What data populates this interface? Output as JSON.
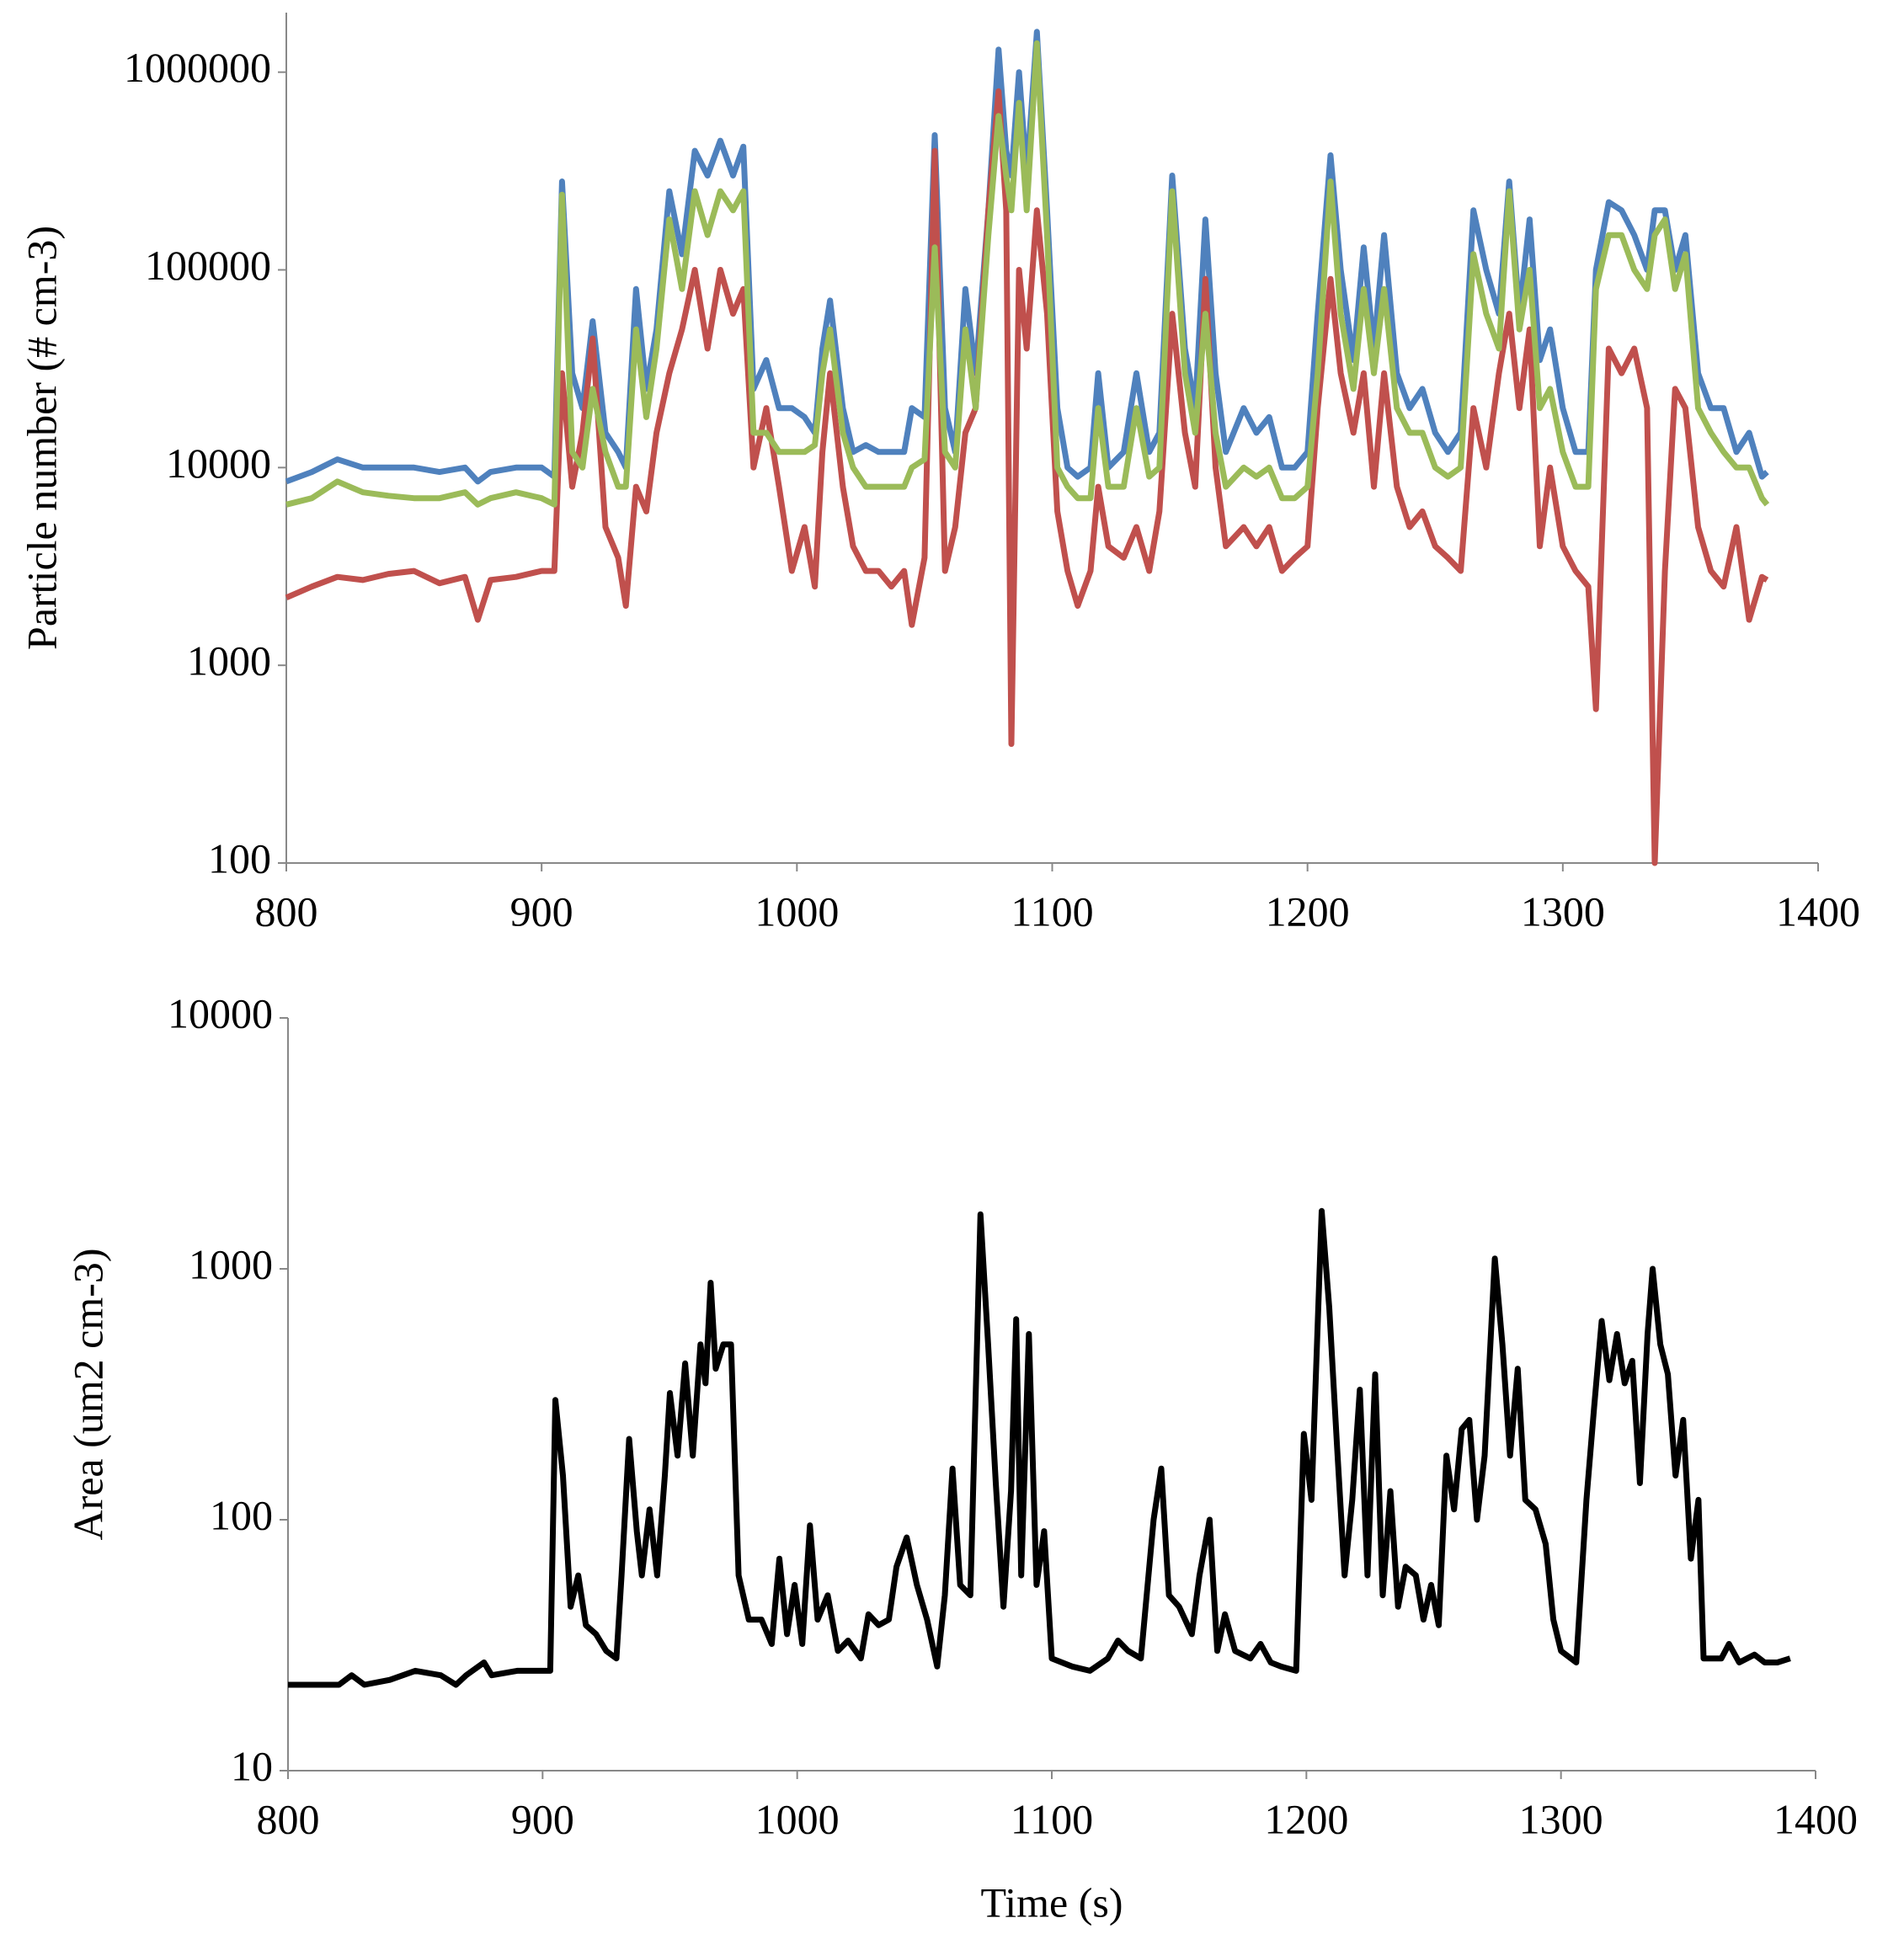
{
  "chart_data": [
    {
      "type": "line",
      "ylabel": "Particle number (# cm-3)",
      "log_y": true,
      "xlim": [
        800,
        1400
      ],
      "xticks": [
        800,
        900,
        1000,
        1100,
        1200,
        1300,
        1400
      ],
      "ylim": [
        100,
        2000000
      ],
      "yticks": [
        100,
        1000,
        10000,
        100000,
        1000000
      ],
      "x": [
        800,
        810,
        820,
        830,
        840,
        850,
        860,
        870,
        875,
        880,
        890,
        900,
        905,
        908,
        912,
        916,
        920,
        925,
        930,
        933,
        937,
        941,
        945,
        950,
        955,
        960,
        965,
        970,
        975,
        979,
        983,
        988,
        993,
        998,
        1003,
        1007,
        1010,
        1013,
        1018,
        1022,
        1027,
        1032,
        1037,
        1042,
        1045,
        1050,
        1054,
        1058,
        1062,
        1066,
        1070,
        1075,
        1079,
        1082,
        1084,
        1087,
        1090,
        1094,
        1098,
        1102,
        1106,
        1110,
        1115,
        1118,
        1122,
        1128,
        1133,
        1138,
        1142,
        1147,
        1152,
        1156,
        1160,
        1164,
        1168,
        1175,
        1180,
        1185,
        1190,
        1195,
        1200,
        1204,
        1209,
        1213,
        1218,
        1222,
        1226,
        1230,
        1235,
        1240,
        1245,
        1250,
        1255,
        1260,
        1265,
        1270,
        1275,
        1279,
        1283,
        1287,
        1291,
        1295,
        1300,
        1305,
        1310,
        1313,
        1318,
        1323,
        1328,
        1333,
        1336,
        1340,
        1344,
        1348,
        1353,
        1358,
        1363,
        1368,
        1373,
        1378,
        1380
      ],
      "series": [
        {
          "color": "#4f81bd",
          "values": [
            8500,
            9500,
            11000,
            10000,
            10000,
            10000,
            9500,
            10000,
            8500,
            9500,
            10000,
            10000,
            9000,
            280000,
            30000,
            20000,
            55000,
            15000,
            12000,
            10000,
            80000,
            25000,
            50000,
            250000,
            120000,
            400000,
            300000,
            450000,
            300000,
            420000,
            25000,
            35000,
            20000,
            20000,
            18000,
            15000,
            40000,
            70000,
            20000,
            12000,
            13000,
            12000,
            12000,
            12000,
            20000,
            18000,
            480000,
            20000,
            12000,
            80000,
            30000,
            200000,
            1300000,
            400000,
            300000,
            1000000,
            300000,
            1600000,
            200000,
            20000,
            10000,
            9000,
            10000,
            30000,
            10000,
            12000,
            30000,
            12000,
            15000,
            300000,
            40000,
            20000,
            180000,
            30000,
            12000,
            20000,
            15000,
            18000,
            10000,
            10000,
            12000,
            60000,
            380000,
            100000,
            35000,
            130000,
            40000,
            150000,
            30000,
            20000,
            25000,
            15000,
            12000,
            15000,
            200000,
            100000,
            60000,
            280000,
            60000,
            180000,
            35000,
            50000,
            20000,
            12000,
            12000,
            100000,
            220000,
            200000,
            150000,
            100000,
            200000,
            200000,
            100000,
            150000,
            30000,
            20000,
            20000,
            12000,
            15000,
            9000,
            9500
          ]
        },
        {
          "color": "#c0504d",
          "values": [
            2200,
            2500,
            2800,
            2700,
            2900,
            3000,
            2600,
            2800,
            1700,
            2700,
            2800,
            3000,
            3000,
            30000,
            8000,
            15000,
            45000,
            5000,
            3500,
            2000,
            8000,
            6000,
            15000,
            30000,
            50000,
            100000,
            40000,
            100000,
            60000,
            80000,
            10000,
            20000,
            8000,
            3000,
            5000,
            2500,
            12000,
            30000,
            8000,
            4000,
            3000,
            3000,
            2500,
            3000,
            1600,
            3500,
            400000,
            3000,
            5000,
            15000,
            20000,
            200000,
            800000,
            200000,
            400,
            100000,
            40000,
            200000,
            60000,
            6000,
            3000,
            2000,
            3000,
            8000,
            4000,
            3500,
            5000,
            3000,
            6000,
            60000,
            15000,
            8000,
            90000,
            10000,
            4000,
            5000,
            4000,
            5000,
            3000,
            3500,
            4000,
            20000,
            90000,
            30000,
            15000,
            30000,
            8000,
            30000,
            8000,
            5000,
            6000,
            4000,
            3500,
            3000,
            20000,
            10000,
            30000,
            60000,
            20000,
            50000,
            4000,
            10000,
            4000,
            3000,
            2500,
            600,
            40000,
            30000,
            40000,
            20000,
            100,
            3000,
            25000,
            20000,
            5000,
            3000,
            2500,
            5000,
            1700,
            2800,
            2700
          ]
        },
        {
          "color": "#9bbb59",
          "values": [
            6500,
            7000,
            8500,
            7500,
            7200,
            7000,
            7000,
            7500,
            6500,
            7000,
            7500,
            7000,
            6500,
            240000,
            12000,
            10000,
            25000,
            12000,
            8000,
            8000,
            50000,
            18000,
            40000,
            180000,
            80000,
            250000,
            150000,
            250000,
            200000,
            250000,
            15000,
            15000,
            12000,
            12000,
            12000,
            13000,
            30000,
            50000,
            15000,
            10000,
            8000,
            8000,
            8000,
            8000,
            10000,
            11000,
            130000,
            12000,
            10000,
            50000,
            20000,
            150000,
            600000,
            300000,
            200000,
            700000,
            200000,
            1400000,
            150000,
            10000,
            8000,
            7000,
            7000,
            20000,
            8000,
            8000,
            20000,
            9000,
            10000,
            250000,
            30000,
            15000,
            60000,
            15000,
            8000,
            10000,
            9000,
            10000,
            7000,
            7000,
            8000,
            30000,
            280000,
            60000,
            25000,
            80000,
            30000,
            80000,
            20000,
            15000,
            15000,
            10000,
            9000,
            10000,
            120000,
            60000,
            40000,
            250000,
            50000,
            100000,
            20000,
            25000,
            12000,
            8000,
            8000,
            80000,
            150000,
            150000,
            100000,
            80000,
            150000,
            180000,
            80000,
            120000,
            20000,
            15000,
            12000,
            10000,
            10000,
            7000,
            6500
          ]
        }
      ]
    },
    {
      "type": "line",
      "ylabel": "Area (um2 cm-3)",
      "xlabel": "Time (s)",
      "log_y": true,
      "xlim": [
        800,
        1400
      ],
      "xticks": [
        800,
        900,
        1000,
        1100,
        1200,
        1300,
        1400
      ],
      "ylim": [
        10,
        10000
      ],
      "yticks": [
        10,
        100,
        1000,
        10000
      ],
      "x": [
        800,
        810,
        820,
        825,
        830,
        840,
        850,
        860,
        866,
        870,
        877,
        880,
        890,
        900,
        903,
        905,
        908,
        911,
        914,
        917,
        921,
        925,
        929,
        931,
        934,
        937,
        939,
        942,
        945,
        948,
        950,
        953,
        956,
        959,
        962,
        964,
        966,
        968,
        971,
        974,
        977,
        981,
        986,
        990,
        993,
        996,
        999,
        1002,
        1005,
        1008,
        1012,
        1016,
        1020,
        1025,
        1028,
        1032,
        1036,
        1039,
        1043,
        1047,
        1051,
        1055,
        1058,
        1061,
        1064,
        1068,
        1072,
        1075,
        1078,
        1081,
        1084,
        1086,
        1088,
        1091,
        1094,
        1097,
        1100,
        1108,
        1115,
        1122,
        1126,
        1130,
        1135,
        1140,
        1143,
        1146,
        1150,
        1155,
        1158,
        1162,
        1165,
        1168,
        1172,
        1178,
        1182,
        1186,
        1190,
        1196,
        1199,
        1202,
        1206,
        1209,
        1212,
        1215,
        1218,
        1221,
        1224,
        1227,
        1230,
        1233,
        1236,
        1239,
        1243,
        1246,
        1249,
        1252,
        1255,
        1258,
        1261,
        1264,
        1267,
        1270,
        1274,
        1277,
        1280,
        1283,
        1286,
        1290,
        1294,
        1297,
        1300,
        1306,
        1310,
        1313,
        1316,
        1319,
        1322,
        1325,
        1328,
        1331,
        1334,
        1336,
        1339,
        1342,
        1345,
        1348,
        1351,
        1354,
        1356,
        1363,
        1366,
        1370,
        1376,
        1380,
        1385,
        1390
      ],
      "series": [
        {
          "color": "#000000",
          "values": [
            22,
            22,
            22,
            24,
            22,
            23,
            25,
            24,
            22,
            24,
            27,
            24,
            25,
            25,
            25,
            300,
            150,
            45,
            60,
            38,
            35,
            30,
            28,
            60,
            210,
            90,
            60,
            110,
            60,
            150,
            320,
            180,
            420,
            180,
            500,
            350,
            880,
            400,
            500,
            500,
            60,
            40,
            40,
            32,
            70,
            35,
            55,
            32,
            95,
            40,
            50,
            30,
            33,
            28,
            42,
            38,
            40,
            65,
            85,
            55,
            40,
            26,
            50,
            160,
            55,
            50,
            1650,
            500,
            140,
            45,
            130,
            630,
            60,
            550,
            55,
            90,
            28,
            26,
            25,
            28,
            33,
            30,
            28,
            100,
            160,
            50,
            45,
            35,
            60,
            100,
            30,
            42,
            30,
            28,
            32,
            27,
            26,
            25,
            220,
            120,
            1700,
            700,
            200,
            60,
            120,
            330,
            60,
            380,
            50,
            130,
            45,
            65,
            60,
            40,
            55,
            38,
            180,
            110,
            230,
            250,
            100,
            180,
            1100,
            500,
            180,
            400,
            120,
            110,
            80,
            40,
            30,
            27,
            120,
            280,
            620,
            360,
            550,
            350,
            430,
            140,
            550,
            1000,
            500,
            380,
            150,
            250,
            70,
            120,
            28,
            28,
            32,
            27,
            29,
            27,
            27,
            28
          ]
        }
      ]
    }
  ]
}
